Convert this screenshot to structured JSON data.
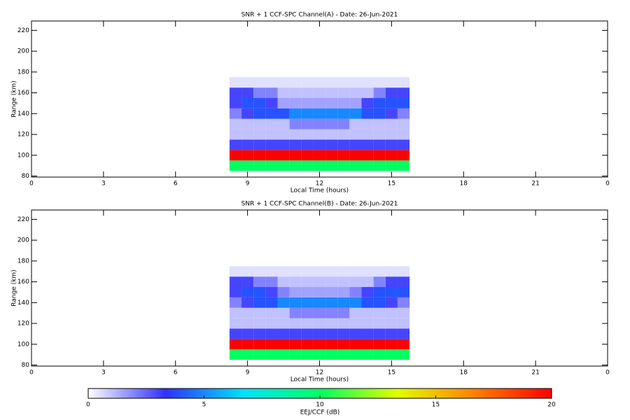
{
  "chart_data": [
    {
      "type": "heatmap",
      "title": "SNR + 1 CCF-SPC Channel(A) - Date: 26-Jun-2021",
      "x_label": "Local Time (hours)",
      "y_label": "Range (km)",
      "xlim": [
        0,
        24
      ],
      "xticks": [
        0,
        3,
        6,
        9,
        12,
        15,
        18,
        21,
        {
          "value": 24,
          "label": "0"
        }
      ],
      "ylim": [
        79,
        229
      ],
      "yticks": [
        80,
        100,
        120,
        140,
        160,
        180,
        200,
        220
      ],
      "x": [
        8.5,
        9,
        9.5,
        10,
        10.5,
        11,
        11.5,
        12,
        12.5,
        13,
        13.5,
        14,
        14.5,
        15,
        15.5
      ],
      "y": [
        90,
        100,
        110,
        120,
        130,
        140,
        150,
        160,
        170
      ],
      "values": [
        [
          10,
          10,
          10,
          10,
          10,
          10,
          10,
          10,
          10,
          10,
          10,
          10,
          10,
          10,
          10
        ],
        [
          20,
          20,
          20,
          20,
          20,
          20,
          20,
          20,
          20,
          20,
          20,
          20,
          20,
          20,
          20
        ],
        [
          3,
          3,
          3,
          3,
          3,
          3,
          3,
          3,
          3,
          3,
          3,
          3,
          3,
          3,
          3
        ],
        [
          1,
          1,
          1,
          1,
          1,
          1,
          1,
          1,
          1,
          1,
          1,
          1,
          1,
          1,
          1
        ],
        [
          1,
          1,
          1,
          1,
          1,
          2,
          2,
          2,
          2,
          2,
          1,
          1,
          1,
          1,
          1
        ],
        [
          2,
          3,
          4,
          4,
          4,
          5,
          5,
          5,
          5,
          5,
          5,
          4,
          4,
          3,
          2
        ],
        [
          3,
          4,
          4,
          3,
          1.5,
          1.5,
          1.5,
          1.5,
          1.5,
          1.5,
          1.5,
          3,
          4,
          4,
          4
        ],
        [
          3,
          3,
          2,
          2,
          1,
          1,
          1,
          1,
          1,
          1,
          1,
          1,
          2,
          3,
          3
        ],
        [
          0.5,
          0.5,
          0.5,
          0.5,
          0.5,
          0.5,
          0.5,
          0.5,
          0.5,
          0.5,
          0.5,
          0.5,
          0.5,
          0.5,
          0.5
        ]
      ]
    },
    {
      "type": "heatmap",
      "title": "SNR + 1 CCF-SPC Channel(B) - Date: 26-Jun-2021",
      "x_label": "Local Time (hours)",
      "y_label": "Range (km)",
      "xlim": [
        0,
        24
      ],
      "xticks": [
        0,
        3,
        6,
        9,
        12,
        15,
        18,
        21,
        {
          "value": 24,
          "label": "0"
        }
      ],
      "ylim": [
        79,
        229
      ],
      "yticks": [
        80,
        100,
        120,
        140,
        160,
        180,
        200,
        220
      ],
      "x": [
        8.5,
        9,
        9.5,
        10,
        10.5,
        11,
        11.5,
        12,
        12.5,
        13,
        13.5,
        14,
        14.5,
        15,
        15.5
      ],
      "y": [
        90,
        100,
        110,
        120,
        130,
        140,
        150,
        160,
        170
      ],
      "values": [
        [
          10,
          10,
          10,
          10,
          10,
          10,
          10,
          10,
          10,
          10,
          10,
          10,
          10,
          10,
          10
        ],
        [
          20,
          20,
          20,
          20,
          20,
          20,
          20,
          20,
          20,
          20,
          20,
          20,
          20,
          20,
          20
        ],
        [
          3,
          3,
          3,
          3,
          3,
          3,
          3,
          3,
          3,
          3,
          3,
          3,
          3,
          3,
          3
        ],
        [
          1,
          1,
          1,
          1,
          1,
          1,
          1,
          1,
          1,
          1,
          1,
          1,
          1,
          1,
          1
        ],
        [
          1,
          1,
          1,
          1,
          1,
          2,
          2,
          2,
          2,
          2,
          1,
          1,
          1,
          1,
          1
        ],
        [
          2,
          3,
          4,
          4,
          5,
          5,
          5,
          5,
          5,
          5,
          5,
          4,
          4,
          3,
          2
        ],
        [
          3,
          4,
          4,
          3,
          2,
          1.5,
          1.5,
          1.5,
          1.5,
          1.5,
          2,
          3,
          4,
          4,
          4
        ],
        [
          3,
          3,
          2,
          2,
          1,
          1,
          1,
          1,
          1,
          1,
          1,
          1,
          2,
          3,
          3
        ],
        [
          0.5,
          0.5,
          0.5,
          0.5,
          0.5,
          0.5,
          0.5,
          0.5,
          0.5,
          0.5,
          0.5,
          0.5,
          0.5,
          0.5,
          0.5
        ]
      ]
    },
    {
      "type": "colorbar",
      "label": "EEJ/CCF (dB)",
      "xlim": [
        0,
        20
      ],
      "xticks": [
        0,
        5,
        10,
        15,
        20
      ],
      "colors": [
        "#ffffff",
        "#3030ff",
        "#00e0ff",
        "#00ff60",
        "#e0ff00",
        "#ff8000",
        "#ff0000"
      ]
    }
  ]
}
